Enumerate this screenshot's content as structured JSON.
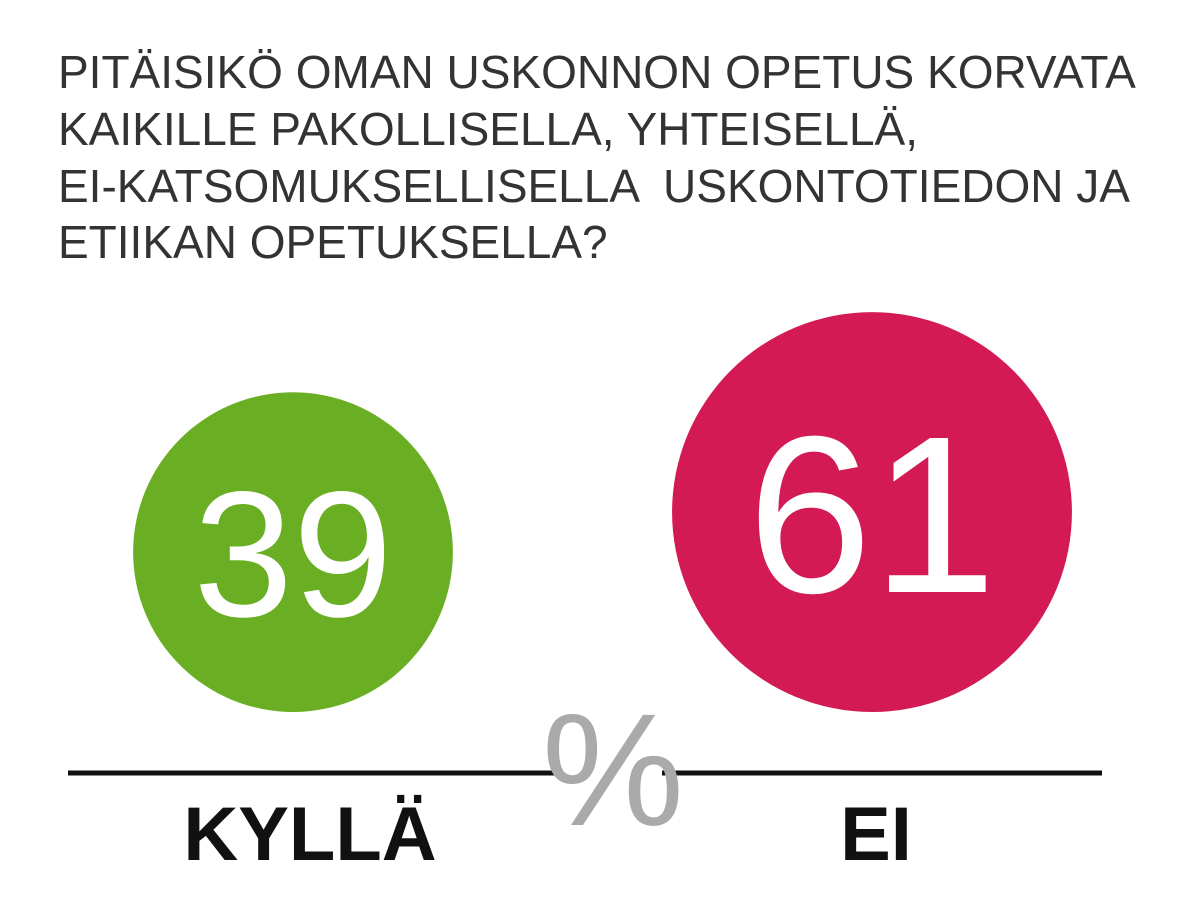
{
  "chart_data": {
    "type": "bubble",
    "title": [
      "PITÄISIKÖ OMAN USKONNON OPETUS KORVATA",
      "KAIKILLE PAKOLLISELLA, YHTEISELLÄ,",
      "EI-KATSOMUKSELLISELLA  USKONTOTIEDON JA",
      "ETIIKAN OPETUKSELLA?"
    ],
    "unit": "%",
    "categories": [
      "KYLLÄ",
      "EI"
    ],
    "values": [
      39,
      61
    ],
    "colors": [
      "#6aaf23",
      "#d41a54"
    ]
  }
}
